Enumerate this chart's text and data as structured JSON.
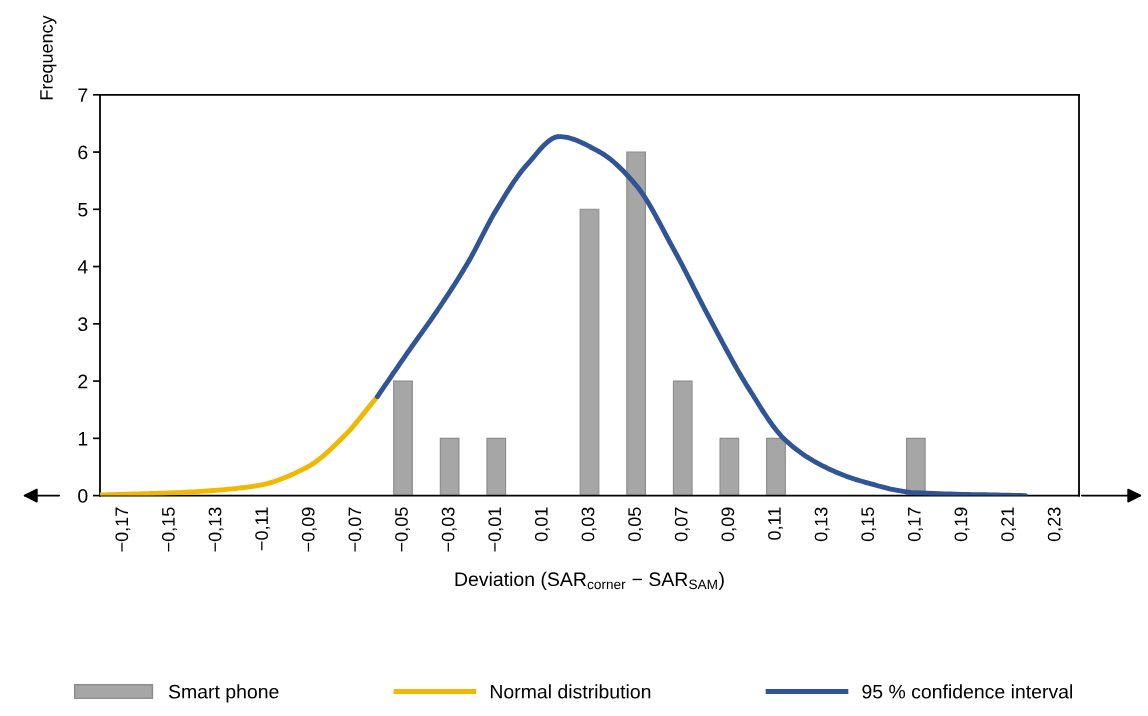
{
  "chart_data": {
    "type": "bar",
    "xlabel": "Deviation (SAR$_{corner}$ − SAR$_{SAM}$)",
    "ylabel": "Frequency",
    "xlim": [
      -0.18,
      0.24
    ],
    "ylim": [
      0,
      7
    ],
    "yticks": [
      0,
      1,
      2,
      3,
      4,
      5,
      6,
      7
    ],
    "xticks": [
      {
        "value": -0.17,
        "label": "−0,17"
      },
      {
        "value": -0.15,
        "label": "−0,15"
      },
      {
        "value": -0.13,
        "label": "−0,13"
      },
      {
        "value": -0.11,
        "label": "−0,11"
      },
      {
        "value": -0.09,
        "label": "−0,09"
      },
      {
        "value": -0.07,
        "label": "−0,07"
      },
      {
        "value": -0.05,
        "label": "−0,05"
      },
      {
        "value": -0.03,
        "label": "−0,03"
      },
      {
        "value": -0.01,
        "label": "−0,01"
      },
      {
        "value": 0.01,
        "label": "0,01"
      },
      {
        "value": 0.03,
        "label": "0,03"
      },
      {
        "value": 0.05,
        "label": "0,05"
      },
      {
        "value": 0.07,
        "label": "0,07"
      },
      {
        "value": 0.09,
        "label": "0,09"
      },
      {
        "value": 0.11,
        "label": "0,11"
      },
      {
        "value": 0.13,
        "label": "0,13"
      },
      {
        "value": 0.15,
        "label": "0,15"
      },
      {
        "value": 0.17,
        "label": "0,17"
      },
      {
        "value": 0.19,
        "label": "0,19"
      },
      {
        "value": 0.21,
        "label": "0,21"
      },
      {
        "value": 0.23,
        "label": "0,23"
      }
    ],
    "grid": false,
    "legend": "bottom",
    "series": [
      {
        "name": "Smart phone",
        "color": "#a6a6a6",
        "x": [
          -0.05,
          -0.03,
          -0.01,
          0.03,
          0.05,
          0.07,
          0.09,
          0.11,
          0.17
        ],
        "values": [
          2,
          1,
          1,
          5,
          6,
          2,
          1,
          1,
          1
        ]
      },
      {
        "name": "Normal distribution",
        "type": "line",
        "color": "#f0b800",
        "x": [
          -0.18,
          -0.143,
          -0.113,
          -0.091,
          -0.075,
          -0.061
        ],
        "values": [
          0.01,
          0.06,
          0.17,
          0.5,
          1.05,
          1.73
        ]
      },
      {
        "name": "95 % confidence interval",
        "type": "line",
        "color": "#2f5597",
        "x": [
          -0.061,
          -0.048,
          -0.035,
          -0.022,
          -0.01,
          0.003,
          0.017,
          0.034,
          0.05,
          0.066,
          0.082,
          0.098,
          0.114,
          0.13,
          0.146,
          0.17,
          0.217
        ],
        "values": [
          1.73,
          2.5,
          3.25,
          4.08,
          4.99,
          5.77,
          6.27,
          6.01,
          5.42,
          4.31,
          3.06,
          1.89,
          0.97,
          0.52,
          0.26,
          0.05,
          0.0
        ]
      }
    ]
  }
}
